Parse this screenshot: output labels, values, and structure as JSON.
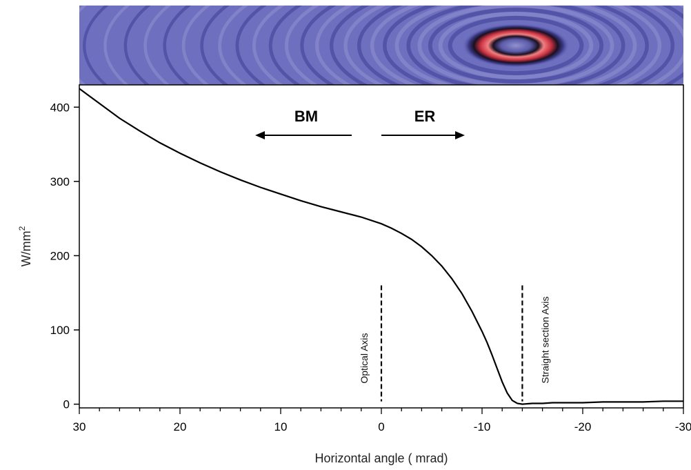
{
  "chart_data": {
    "type": "line",
    "title": "",
    "xlabel": "Horizontal angle ( mrad)",
    "ylabel": "W/mm",
    "ylabel_superscript": "2",
    "xlim": [
      30,
      -30
    ],
    "ylim": [
      -5,
      430
    ],
    "x_ticks": [
      30,
      20,
      10,
      0,
      -10,
      -20,
      -30
    ],
    "y_ticks": [
      0,
      100,
      200,
      300,
      400
    ],
    "x_tick_labels": [
      "30",
      "20",
      "10",
      "0",
      "-10",
      "-20",
      "-30"
    ],
    "y_tick_labels": [
      "0",
      "100",
      "200",
      "300",
      "400"
    ],
    "series": [
      {
        "x": [
          30,
          28,
          26,
          24,
          22,
          20,
          18,
          16,
          14,
          12,
          10,
          8,
          6,
          4,
          2,
          0,
          -1,
          -2,
          -3,
          -4,
          -5,
          -6,
          -7,
          -8,
          -9,
          -10,
          -10.5,
          -11,
          -11.5,
          -12,
          -12.5,
          -13,
          -13.5,
          -14,
          -15,
          -16,
          -17,
          -18,
          -20,
          -22,
          -24,
          -26,
          -28,
          -30
        ],
        "y": [
          425,
          405,
          385,
          368,
          352,
          338,
          325,
          313,
          302,
          292,
          283,
          274,
          266,
          259,
          252,
          243,
          237,
          230,
          222,
          212,
          200,
          186,
          169,
          149,
          125,
          98,
          83,
          66,
          48,
          30,
          15,
          5,
          1,
          0,
          1,
          1,
          2,
          2,
          2,
          3,
          3,
          3,
          4,
          4
        ]
      }
    ],
    "region_labels": {
      "bm": "BM",
      "er": "ER"
    },
    "annotations": [
      {
        "text": "Optical Axis",
        "x": 0,
        "y_top": 160
      },
      {
        "text": "Straight section Axis",
        "x": -14,
        "y_top": 160
      }
    ],
    "grid": false,
    "legend": "none"
  },
  "colors": {
    "line": "#000000",
    "banner_base": "#6f6fc0",
    "banner_ring_red": "#d94a55"
  }
}
